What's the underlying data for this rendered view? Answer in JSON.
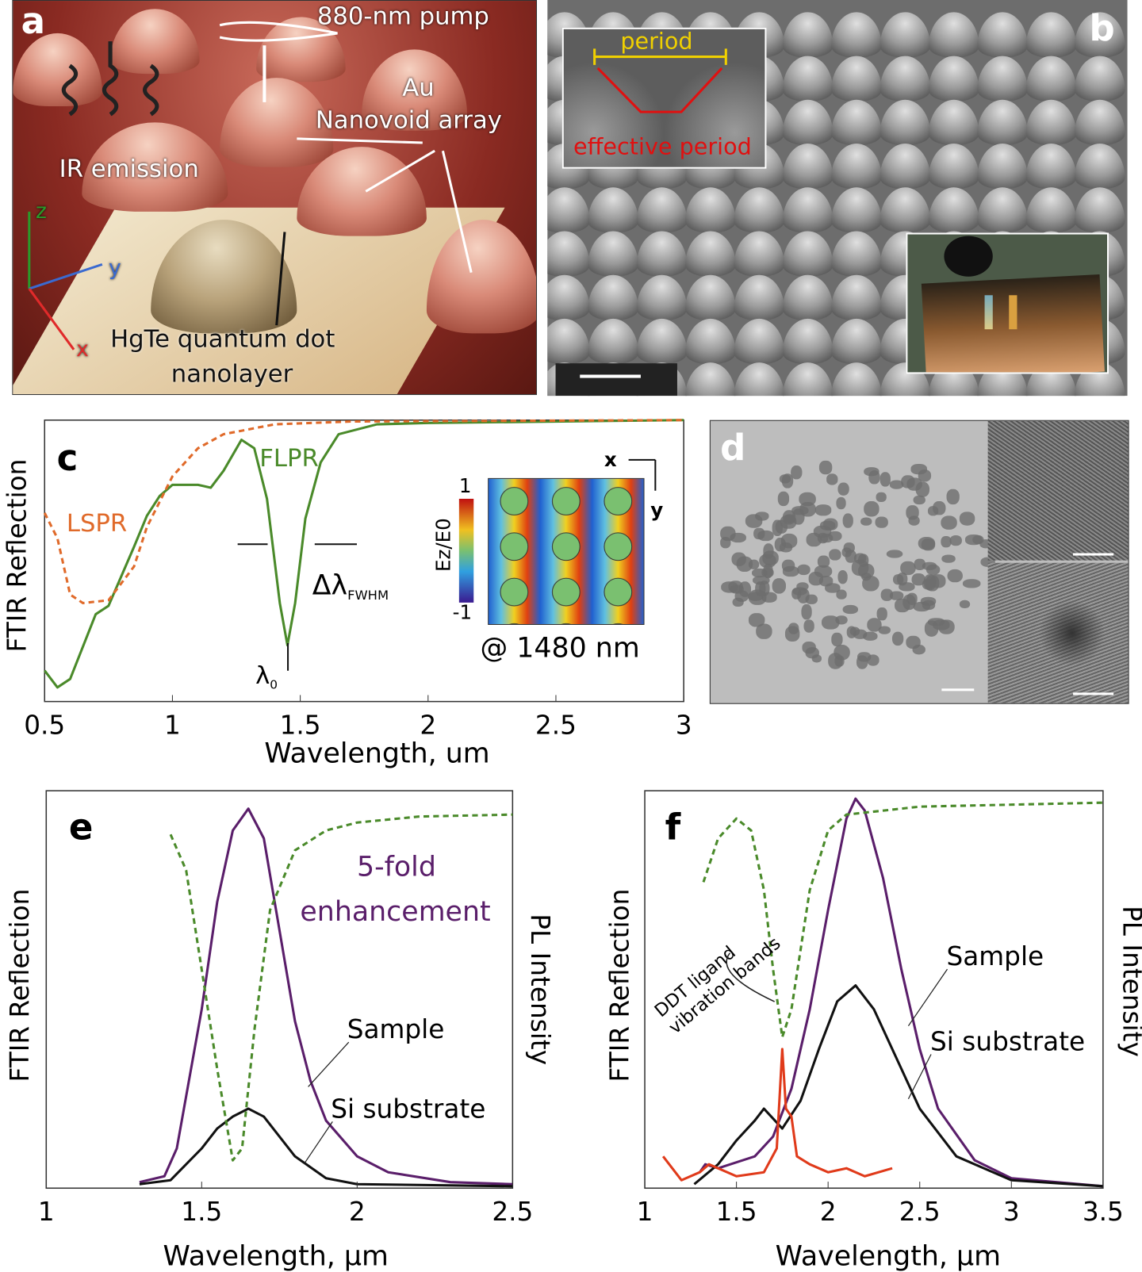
{
  "panel_a": {
    "letter": "a",
    "pump": "880-nm pump",
    "au": "Au",
    "array": "Nanovoid array",
    "ir": "IR emission",
    "hgte": "HgTe quantum dot",
    "nanolayer": "nanolayer",
    "axis_z": "z",
    "axis_y": "y",
    "axis_x": "x"
  },
  "panel_b": {
    "letter": "b",
    "period": "period",
    "effective_period": "effective period"
  },
  "panel_d": {
    "letter": "d"
  },
  "colors": {
    "green": "#4a8a2a",
    "orange": "#e06a2a",
    "purple": "#5a1e6a",
    "black": "#111111",
    "red": "#e03a1a"
  },
  "chart_data": [
    {
      "id": "c",
      "type": "line",
      "letter": "c",
      "xlabel": "Wavelength, um",
      "ylabel": "FTIR Reflection",
      "xlim": [
        0.5,
        3
      ],
      "ylim": [
        0,
        1
      ],
      "xticks": [
        0.5,
        1,
        1.5,
        2,
        2.5,
        3
      ],
      "xtick_labels": [
        "0.5",
        "1",
        "1.5",
        "2",
        "2.5",
        "3"
      ],
      "annotations": {
        "flpr": "FLPR",
        "lspr": "LSPR",
        "fwhm": "Δλ",
        "fwhm_sub": "FWHM",
        "lambda0": "λ",
        "lambda0_sub": "0",
        "field_label": "@ 1480 nm",
        "cbar_max": "1",
        "cbar_min": "-1",
        "cbar_label": "Ez/E0",
        "ax_x": "x",
        "ax_y": "y"
      },
      "series": [
        {
          "name": "FLPR",
          "color": "#4a8a2a",
          "dash": false,
          "points": [
            [
              0.5,
              0.11
            ],
            [
              0.55,
              0.05
            ],
            [
              0.6,
              0.08
            ],
            [
              0.7,
              0.31
            ],
            [
              0.75,
              0.34
            ],
            [
              0.85,
              0.55
            ],
            [
              0.9,
              0.66
            ],
            [
              0.95,
              0.73
            ],
            [
              1.0,
              0.77
            ],
            [
              1.1,
              0.77
            ],
            [
              1.15,
              0.76
            ],
            [
              1.2,
              0.82
            ],
            [
              1.27,
              0.93
            ],
            [
              1.32,
              0.9
            ],
            [
              1.37,
              0.72
            ],
            [
              1.42,
              0.35
            ],
            [
              1.45,
              0.2
            ],
            [
              1.48,
              0.35
            ],
            [
              1.52,
              0.65
            ],
            [
              1.58,
              0.85
            ],
            [
              1.65,
              0.95
            ],
            [
              1.8,
              0.985
            ],
            [
              2,
              0.99
            ],
            [
              3,
              1.0
            ]
          ]
        },
        {
          "name": "LSPR",
          "color": "#e06a2a",
          "dash": true,
          "points": [
            [
              0.5,
              0.67
            ],
            [
              0.55,
              0.58
            ],
            [
              0.6,
              0.38
            ],
            [
              0.65,
              0.35
            ],
            [
              0.75,
              0.36
            ],
            [
              0.85,
              0.48
            ],
            [
              0.9,
              0.62
            ],
            [
              1.0,
              0.8
            ],
            [
              1.1,
              0.9
            ],
            [
              1.2,
              0.95
            ],
            [
              1.4,
              0.985
            ],
            [
              1.7,
              0.995
            ],
            [
              3,
              1.0
            ]
          ]
        }
      ]
    },
    {
      "id": "e",
      "type": "line",
      "letter": "e",
      "xlabel": "Wavelength, µm",
      "ylabel": "FTIR Reflection",
      "ylabel2": "PL Intensity",
      "xlim": [
        1,
        2.5
      ],
      "ylim": [
        0,
        1
      ],
      "xticks": [
        1,
        1.5,
        2,
        2.5
      ],
      "xtick_labels": [
        "1",
        "1.5",
        "2",
        "2.5"
      ],
      "annotations": {
        "enh1": "5-fold",
        "enh2": "enhancement",
        "sample": "Sample",
        "si": "Si substrate"
      },
      "series": [
        {
          "name": "Sample",
          "color": "#5a1e6a",
          "dash": false,
          "points": [
            [
              1.3,
              0.015
            ],
            [
              1.38,
              0.03
            ],
            [
              1.42,
              0.1
            ],
            [
              1.5,
              0.45
            ],
            [
              1.55,
              0.72
            ],
            [
              1.6,
              0.9
            ],
            [
              1.65,
              0.955
            ],
            [
              1.7,
              0.88
            ],
            [
              1.75,
              0.65
            ],
            [
              1.8,
              0.42
            ],
            [
              1.85,
              0.27
            ],
            [
              1.9,
              0.17
            ],
            [
              2.0,
              0.08
            ],
            [
              2.1,
              0.04
            ],
            [
              2.3,
              0.015
            ],
            [
              2.5,
              0.01
            ]
          ]
        },
        {
          "name": "Si substrate",
          "color": "#111111",
          "dash": false,
          "points": [
            [
              1.3,
              0.01
            ],
            [
              1.4,
              0.02
            ],
            [
              1.5,
              0.1
            ],
            [
              1.55,
              0.15
            ],
            [
              1.6,
              0.18
            ],
            [
              1.65,
              0.2
            ],
            [
              1.7,
              0.18
            ],
            [
              1.8,
              0.08
            ],
            [
              1.9,
              0.025
            ],
            [
              2.0,
              0.01
            ],
            [
              2.5,
              0.005
            ]
          ]
        },
        {
          "name": "FTIR Reflection",
          "color": "#4a8a2a",
          "dash": true,
          "points": [
            [
              1.4,
              0.89
            ],
            [
              1.45,
              0.8
            ],
            [
              1.5,
              0.55
            ],
            [
              1.55,
              0.3
            ],
            [
              1.6,
              0.07
            ],
            [
              1.63,
              0.1
            ],
            [
              1.67,
              0.4
            ],
            [
              1.72,
              0.7
            ],
            [
              1.8,
              0.85
            ],
            [
              1.9,
              0.9
            ],
            [
              2.0,
              0.92
            ],
            [
              2.2,
              0.935
            ],
            [
              2.5,
              0.94
            ]
          ]
        }
      ]
    },
    {
      "id": "f",
      "type": "line",
      "letter": "f",
      "xlabel": "Wavelength, µm",
      "ylabel": "FTIR Reflection",
      "ylabel2": "PL Intensity",
      "xlim": [
        1,
        3.5
      ],
      "ylim": [
        0,
        1
      ],
      "xticks": [
        1,
        1.5,
        2,
        2.5,
        3,
        3.5
      ],
      "xtick_labels": [
        "1",
        "1.5",
        "2",
        "2.5",
        "3",
        "3.5"
      ],
      "annotations": {
        "ddt1": "DDT ligand",
        "ddt2": "vibration bands",
        "sample": "Sample",
        "si": "Si substrate"
      },
      "series": [
        {
          "name": "Sample",
          "color": "#5a1e6a",
          "dash": false,
          "points": [
            [
              1.3,
              0.04
            ],
            [
              1.33,
              0.06
            ],
            [
              1.4,
              0.05
            ],
            [
              1.6,
              0.08
            ],
            [
              1.7,
              0.13
            ],
            [
              1.8,
              0.25
            ],
            [
              1.9,
              0.45
            ],
            [
              2.0,
              0.7
            ],
            [
              2.1,
              0.93
            ],
            [
              2.15,
              0.98
            ],
            [
              2.2,
              0.95
            ],
            [
              2.3,
              0.78
            ],
            [
              2.4,
              0.55
            ],
            [
              2.5,
              0.35
            ],
            [
              2.6,
              0.2
            ],
            [
              2.8,
              0.07
            ],
            [
              3.0,
              0.025
            ],
            [
              3.5,
              0.005
            ]
          ]
        },
        {
          "name": "Si substrate",
          "color": "#111111",
          "dash": false,
          "points": [
            [
              1.27,
              0.01
            ],
            [
              1.4,
              0.06
            ],
            [
              1.5,
              0.12
            ],
            [
              1.6,
              0.17
            ],
            [
              1.65,
              0.2
            ],
            [
              1.75,
              0.15
            ],
            [
              1.85,
              0.22
            ],
            [
              1.95,
              0.35
            ],
            [
              2.05,
              0.47
            ],
            [
              2.15,
              0.51
            ],
            [
              2.25,
              0.45
            ],
            [
              2.4,
              0.3
            ],
            [
              2.5,
              0.2
            ],
            [
              2.7,
              0.08
            ],
            [
              3.0,
              0.02
            ],
            [
              3.5,
              0.005
            ]
          ]
        },
        {
          "name": "DDT ligand",
          "color": "#e03a1a",
          "dash": false,
          "points": [
            [
              1.1,
              0.08
            ],
            [
              1.15,
              0.05
            ],
            [
              1.2,
              0.02
            ],
            [
              1.3,
              0.04
            ],
            [
              1.35,
              0.06
            ],
            [
              1.5,
              0.03
            ],
            [
              1.65,
              0.04
            ],
            [
              1.72,
              0.1
            ],
            [
              1.75,
              0.35
            ],
            [
              1.77,
              0.2
            ],
            [
              1.8,
              0.18
            ],
            [
              1.83,
              0.08
            ],
            [
              1.9,
              0.06
            ],
            [
              2.0,
              0.04
            ],
            [
              2.1,
              0.05
            ],
            [
              2.2,
              0.03
            ],
            [
              2.35,
              0.05
            ]
          ]
        },
        {
          "name": "FTIR Reflection",
          "color": "#4a8a2a",
          "dash": true,
          "points": [
            [
              1.32,
              0.77
            ],
            [
              1.4,
              0.88
            ],
            [
              1.5,
              0.93
            ],
            [
              1.58,
              0.9
            ],
            [
              1.65,
              0.75
            ],
            [
              1.7,
              0.55
            ],
            [
              1.75,
              0.38
            ],
            [
              1.8,
              0.45
            ],
            [
              1.9,
              0.75
            ],
            [
              2.0,
              0.9
            ],
            [
              2.1,
              0.94
            ],
            [
              2.5,
              0.96
            ],
            [
              3.5,
              0.97
            ]
          ]
        }
      ]
    }
  ]
}
